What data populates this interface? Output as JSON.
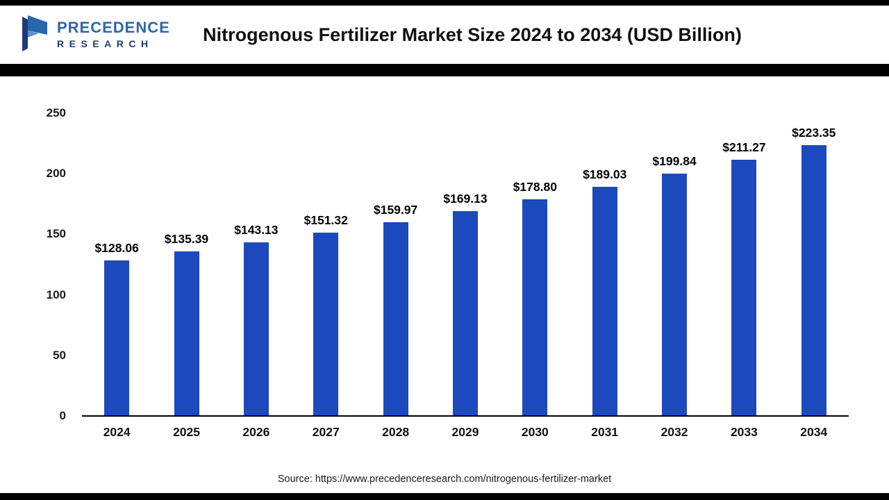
{
  "header": {
    "logo": {
      "line1": "PRECEDENCE",
      "line2": "RESEARCH"
    },
    "title": "Nitrogenous Fertilizer Market Size 2024 to 2034 (USD Billion)"
  },
  "chart_data": {
    "type": "bar",
    "title": "Nitrogenous Fertilizer Market Size 2024 to 2034 (USD Billion)",
    "categories": [
      "2024",
      "2025",
      "2026",
      "2027",
      "2028",
      "2029",
      "2030",
      "2031",
      "2032",
      "2033",
      "2034"
    ],
    "values": [
      128.06,
      135.39,
      143.13,
      151.32,
      159.97,
      169.13,
      178.8,
      189.03,
      199.84,
      211.27,
      223.35
    ],
    "value_labels": [
      "$128.06",
      "$135.39",
      "$143.13",
      "$151.32",
      "$159.97",
      "$169.13",
      "$178.80",
      "$189.03",
      "$199.84",
      "$211.27",
      "$223.35"
    ],
    "xlabel": "",
    "ylabel": "",
    "ylim": [
      0,
      250
    ],
    "yticks": [
      0,
      50,
      100,
      150,
      200,
      250
    ],
    "bar_color": "#1D49BE",
    "grid": false,
    "legend": "none"
  },
  "source": {
    "text": "Source: https://www.precedenceresearch.com/nitrogenous-fertilizer-market"
  }
}
